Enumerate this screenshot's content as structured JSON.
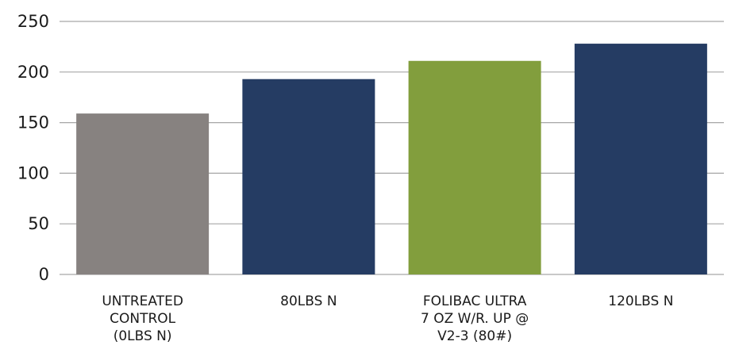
{
  "chart_data": {
    "type": "bar",
    "title": "",
    "xlabel": "",
    "ylabel": "",
    "ylim": [
      0,
      250
    ],
    "yticks": [
      0,
      50,
      100,
      150,
      200,
      250
    ],
    "grid": true,
    "legend": "none",
    "categories": [
      [
        "UNTREATED",
        "CONTROL",
        "(0LBS N)"
      ],
      [
        "80LBS N"
      ],
      [
        "FOLIBAC ULTRA",
        "7 OZ W/R. UP @",
        "V2-3 (80#)"
      ],
      [
        "120LBS N"
      ]
    ],
    "values": [
      159,
      193,
      211,
      228
    ],
    "colors": [
      "#878280",
      "#253c63",
      "#829e3d",
      "#253c63"
    ],
    "grid_color": "#a6a6a6"
  }
}
